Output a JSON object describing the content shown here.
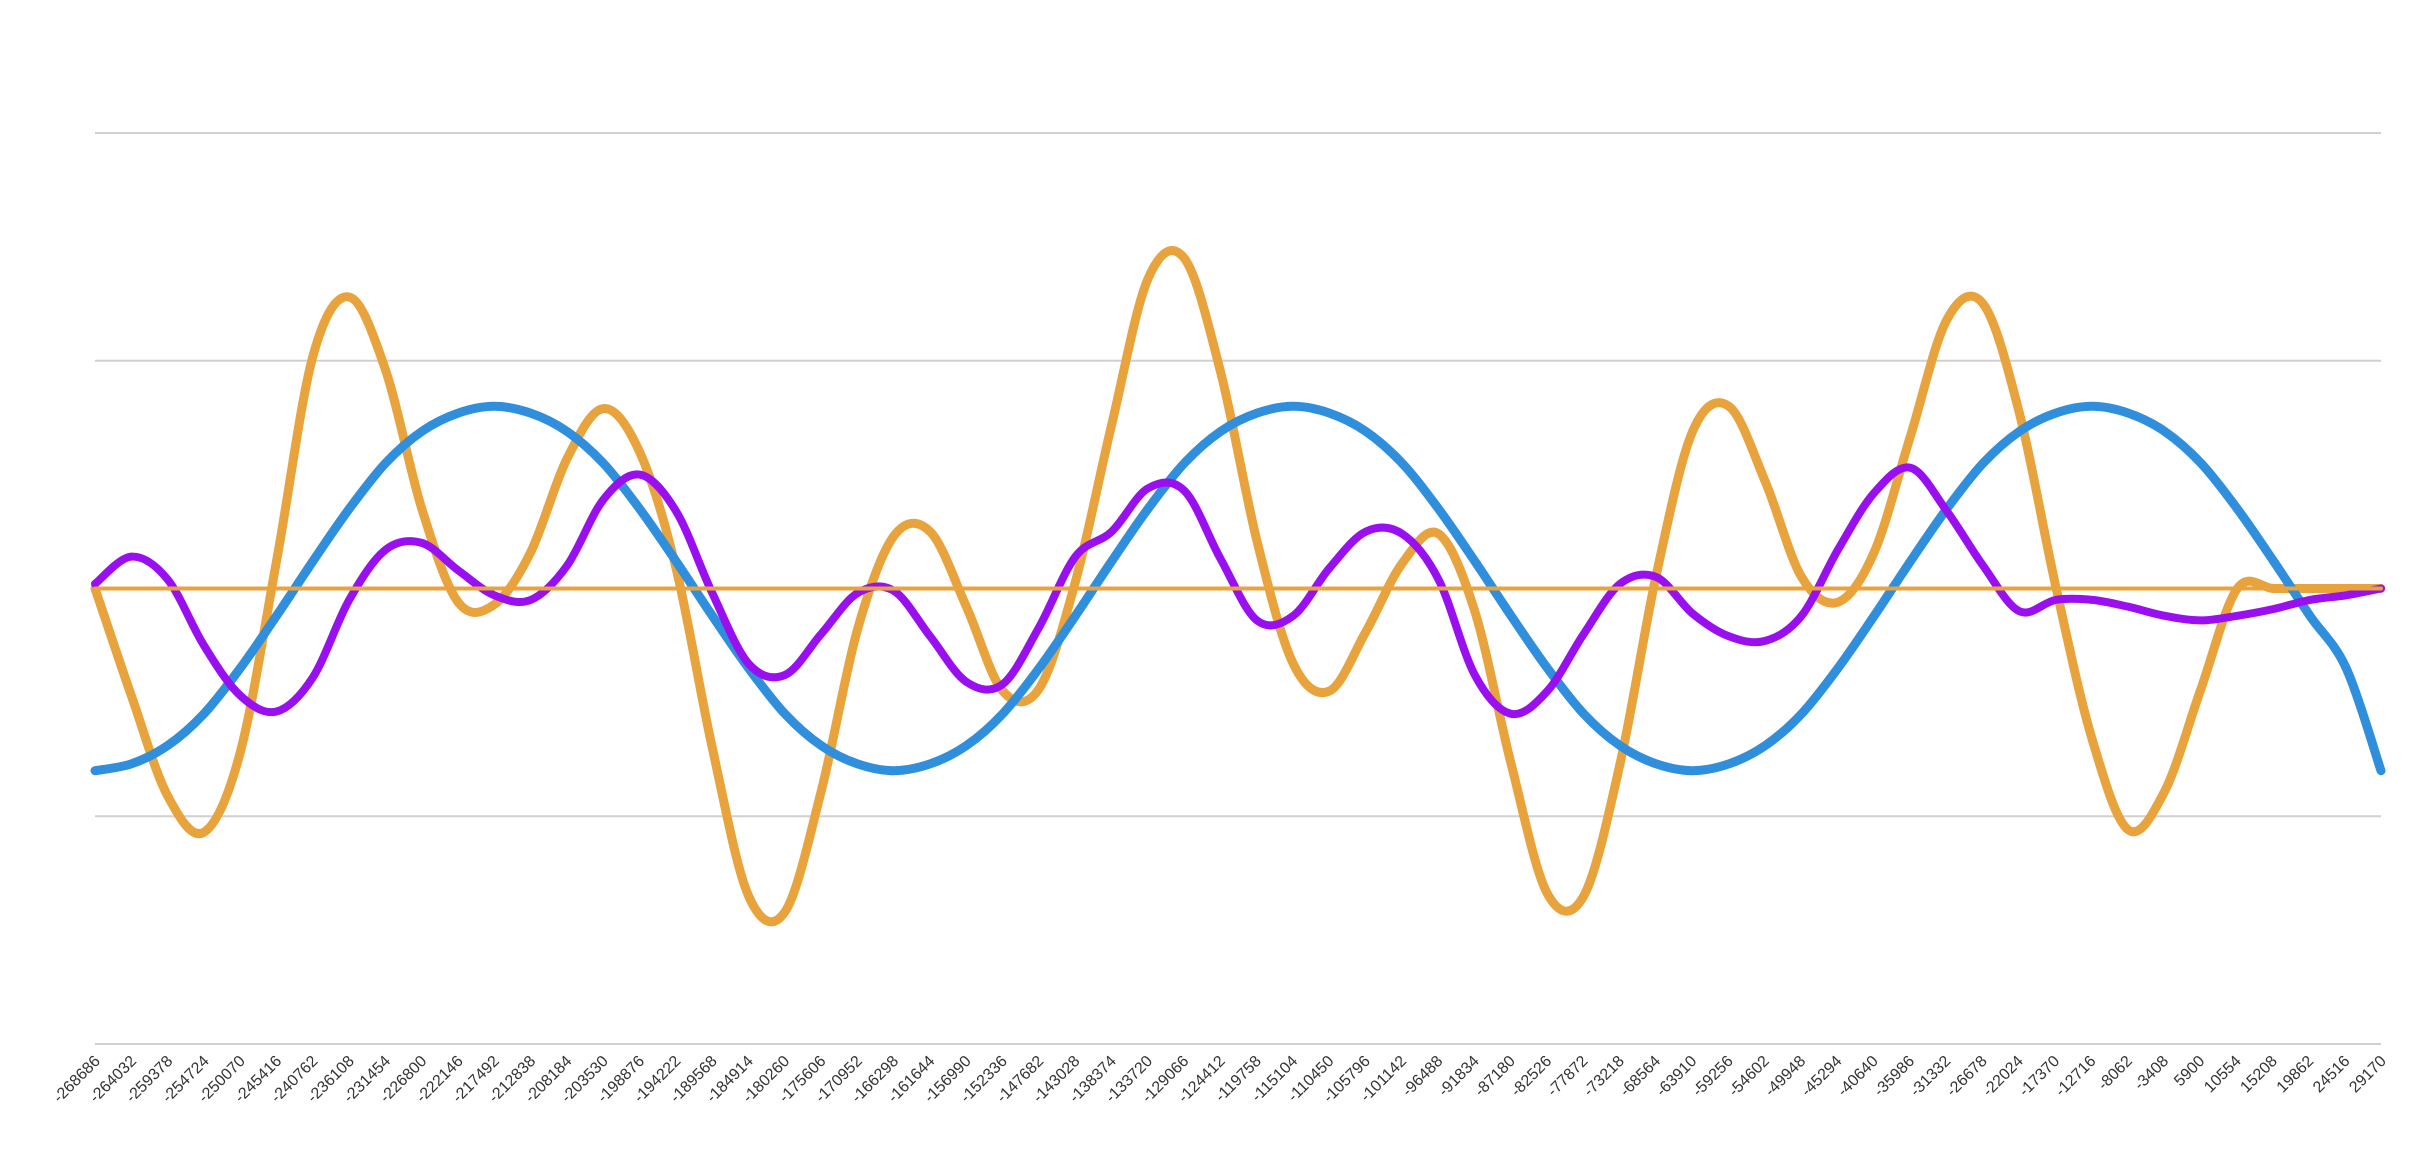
{
  "chart_data": {
    "type": "line",
    "title": "",
    "xlabel": "",
    "ylabel": "",
    "grid": true,
    "legend": "none",
    "x_tick_labels": [
      "-268686",
      "-264032",
      "-259378",
      "-254724",
      "-250070",
      "-245416",
      "-240762",
      "-236108",
      "-231454",
      "-226800",
      "-222146",
      "-217492",
      "-212838",
      "-208184",
      "-203530",
      "-198876",
      "-194222",
      "-189568",
      "-184914",
      "-180260",
      "-175606",
      "-170952",
      "-166298",
      "-161644",
      "-156990",
      "-152336",
      "-147682",
      "-143028",
      "-138374",
      "-133720",
      "-129066",
      "-124412",
      "-119758",
      "-115104",
      "-110450",
      "-105796",
      "-101142",
      "-96488",
      "-91834",
      "-87180",
      "-82526",
      "-77872",
      "-73218",
      "-68564",
      "-63910",
      "-59256",
      "-54602",
      "-49948",
      "-45294",
      "-40640",
      "-35986",
      "-31332",
      "-26678",
      "-22024",
      "-17370",
      "-12716",
      "-8062",
      "-3408",
      "5900",
      "10554",
      "15208",
      "19862",
      "24516",
      "29170"
    ],
    "xlim": [
      -268686,
      29170
    ],
    "ylim": [
      -2,
      2
    ],
    "y_gridlines": [
      -2,
      -1,
      0,
      1,
      2
    ],
    "series": [
      {
        "color": "#e8a33d",
        "x": [
          -268686,
          -263955,
          -259224,
          -254493,
          -249762,
          -245031,
          -240300,
          -235569,
          -230838,
          -226107,
          -221376,
          -216645,
          -211914,
          -207183,
          -202452,
          -197721,
          -192990,
          -188259,
          -183528,
          -178797,
          -174066,
          -169335,
          -164604,
          -159873,
          -155142,
          -150411,
          -145680,
          -140949,
          -136218,
          -131487,
          -126756,
          -122025,
          -117294,
          -112563,
          -107832,
          -103101,
          -98370,
          -93639,
          -88908,
          -84177,
          -79446,
          -74715,
          -69984,
          -65253,
          -60522,
          -55791,
          -51060,
          -46329,
          -41598,
          -36867,
          -32136,
          -27405,
          -22674,
          -17943,
          -13212,
          -8481,
          -3750,
          981,
          5712,
          10443,
          15174,
          19905,
          24636,
          29170
        ],
        "values": [
          0.0,
          -0.47,
          -0.91,
          -1.07,
          -0.72,
          0.12,
          1.02,
          1.28,
          0.96,
          0.35,
          -0.06,
          -0.07,
          0.16,
          0.57,
          0.79,
          0.6,
          0.09,
          -0.7,
          -1.35,
          -1.42,
          -0.89,
          -0.18,
          0.23,
          0.25,
          -0.08,
          -0.45,
          -0.44,
          0.03,
          0.72,
          1.36,
          1.45,
          0.95,
          0.21,
          -0.33,
          -0.45,
          -0.19,
          0.11,
          0.24,
          -0.1,
          -0.77,
          -1.34,
          -1.35,
          -0.77,
          0.06,
          0.69,
          0.8,
          0.47,
          0.05,
          -0.06,
          0.16,
          0.67,
          1.18,
          1.25,
          0.77,
          0.01,
          -0.66,
          -1.06,
          -0.89,
          -0.44,
          -0.0,
          0.0,
          0.0,
          0.0,
          0.0
        ]
      },
      {
        "color": "#2f8fdd",
        "x": [
          -268686,
          -263955,
          -259224,
          -254493,
          -249762,
          -245031,
          -240300,
          -235569,
          -230838,
          -226107,
          -221376,
          -216645,
          -211914,
          -207183,
          -202452,
          -197721,
          -192990,
          -188259,
          -183528,
          -178797,
          -174066,
          -169335,
          -164604,
          -159873,
          -155142,
          -150411,
          -145680,
          -140949,
          -136218,
          -131487,
          -126756,
          -122025,
          -117294,
          -112563,
          -107832,
          -103101,
          -98370,
          -93639,
          -88908,
          -84177,
          -79446,
          -74715,
          -69984,
          -65253,
          -60522,
          -55791,
          -51060,
          -46329,
          -41598,
          -36867,
          -32136,
          -27405,
          -22674,
          -17943,
          -13212,
          -8481,
          -3750,
          981,
          5712,
          10443,
          15174,
          19905,
          24636,
          29170
        ],
        "values": [
          -0.8,
          -0.77,
          -0.69,
          -0.55,
          -0.35,
          -0.12,
          0.12,
          0.35,
          0.55,
          0.69,
          0.77,
          0.8,
          0.77,
          0.69,
          0.55,
          0.35,
          0.12,
          -0.12,
          -0.35,
          -0.55,
          -0.69,
          -0.77,
          -0.8,
          -0.77,
          -0.69,
          -0.55,
          -0.35,
          -0.12,
          0.12,
          0.35,
          0.55,
          0.69,
          0.77,
          0.8,
          0.77,
          0.69,
          0.55,
          0.35,
          0.12,
          -0.12,
          -0.35,
          -0.55,
          -0.69,
          -0.77,
          -0.8,
          -0.77,
          -0.69,
          -0.55,
          -0.35,
          -0.12,
          0.12,
          0.35,
          0.55,
          0.69,
          0.77,
          0.8,
          0.77,
          0.69,
          0.55,
          0.35,
          0.12,
          -0.12,
          -0.35,
          -0.8
        ]
      },
      {
        "color": "#9a0ff0",
        "x": [
          -268686,
          -263955,
          -259224,
          -254493,
          -249762,
          -245031,
          -240300,
          -235569,
          -230838,
          -226107,
          -221376,
          -216645,
          -211914,
          -207183,
          -202452,
          -197721,
          -192990,
          -188259,
          -183528,
          -178797,
          -174066,
          -169335,
          -164604,
          -159873,
          -155142,
          -150411,
          -145680,
          -140949,
          -136218,
          -131487,
          -126756,
          -122025,
          -117294,
          -112563,
          -107832,
          -103101,
          -98370,
          -93639,
          -88908,
          -84177,
          -79446,
          -74715,
          -69984,
          -65253,
          -60522,
          -55791,
          -51060,
          -46329,
          -41598,
          -36867,
          -32136,
          -27405,
          -22674,
          -17943,
          -13212,
          -8481,
          -3750,
          981,
          5712,
          10443,
          15174,
          19905,
          24636,
          29170
        ],
        "values": [
          0.02,
          0.14,
          0.04,
          -0.25,
          -0.47,
          -0.54,
          -0.39,
          -0.05,
          0.17,
          0.2,
          0.08,
          -0.03,
          -0.05,
          0.1,
          0.39,
          0.5,
          0.34,
          -0.02,
          -0.33,
          -0.38,
          -0.2,
          -0.02,
          -0.01,
          -0.21,
          -0.41,
          -0.42,
          -0.17,
          0.14,
          0.25,
          0.44,
          0.43,
          0.13,
          -0.14,
          -0.12,
          0.09,
          0.25,
          0.24,
          0.04,
          -0.38,
          -0.55,
          -0.45,
          -0.2,
          0.02,
          0.05,
          -0.11,
          -0.21,
          -0.23,
          -0.12,
          0.17,
          0.42,
          0.53,
          0.34,
          0.1,
          -0.1,
          -0.05,
          -0.05,
          -0.08,
          -0.12,
          -0.14,
          -0.12,
          -0.09,
          -0.05,
          -0.03,
          0.0
        ]
      },
      {
        "color": "#e8a33d",
        "x": [
          -268686,
          29170
        ],
        "values": [
          0.0,
          0.0
        ]
      }
    ]
  }
}
